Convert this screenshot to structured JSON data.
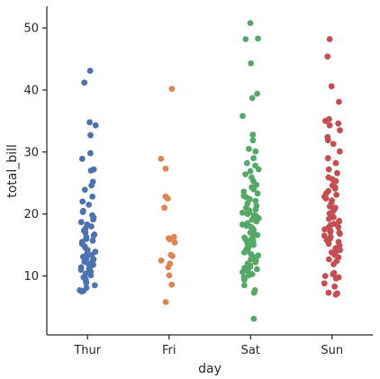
{
  "chart_data": {
    "type": "scatter",
    "subtype": "strip",
    "title": "",
    "xlabel": "day",
    "ylabel": "total_bill",
    "categories": [
      "Thur",
      "Fri",
      "Sat",
      "Sun"
    ],
    "ylim": [
      0.5,
      53.5
    ],
    "yticks": [
      10,
      20,
      30,
      40,
      50
    ],
    "grid": false,
    "legend": "none",
    "series": [
      {
        "category": "Thur",
        "color": "#4c72b0",
        "values": [
          43.1,
          41.2,
          34.8,
          34.3,
          32.7,
          29.8,
          28.9,
          27.2,
          27.0,
          25.2,
          24.6,
          23.9,
          22.8,
          22.0,
          21.5,
          20.5,
          20.3,
          19.8,
          19.4,
          19.1,
          18.7,
          18.3,
          18.0,
          17.6,
          17.3,
          17.0,
          16.7,
          16.5,
          16.3,
          16.0,
          15.7,
          15.5,
          15.2,
          14.8,
          14.5,
          14.2,
          13.9,
          13.6,
          13.4,
          13.1,
          12.9,
          12.7,
          12.5,
          12.3,
          12.0,
          11.8,
          11.6,
          11.4,
          11.2,
          11.0,
          10.7,
          10.4,
          10.1,
          9.8,
          9.5,
          9.2,
          8.9,
          8.5,
          8.1,
          7.7,
          7.6,
          7.5
        ]
      },
      {
        "category": "Fri",
        "color": "#dd8452",
        "values": [
          40.2,
          28.9,
          27.3,
          22.8,
          22.5,
          21.0,
          16.3,
          16.1,
          15.9,
          15.4,
          13.4,
          13.2,
          12.5,
          12.0,
          11.4,
          10.1,
          8.6,
          5.8
        ]
      },
      {
        "category": "Sat",
        "color": "#55a868",
        "values": [
          50.8,
          48.3,
          48.2,
          44.3,
          39.4,
          38.7,
          35.8,
          32.8,
          31.9,
          30.5,
          30.1,
          29.0,
          28.2,
          27.8,
          27.2,
          26.9,
          26.4,
          25.9,
          25.3,
          24.7,
          24.3,
          24.0,
          23.6,
          23.3,
          22.9,
          22.7,
          22.4,
          22.1,
          21.7,
          21.3,
          21.0,
          20.7,
          20.6,
          20.4,
          20.2,
          20.0,
          19.8,
          19.7,
          19.5,
          19.3,
          19.1,
          18.8,
          18.5,
          18.3,
          18.1,
          17.9,
          17.6,
          17.4,
          17.2,
          17.0,
          16.8,
          16.6,
          16.4,
          16.2,
          16.0,
          15.8,
          15.6,
          15.4,
          15.2,
          15.0,
          14.8,
          14.6,
          14.3,
          14.0,
          13.8,
          13.5,
          13.3,
          13.0,
          12.7,
          12.5,
          12.2,
          12.0,
          11.7,
          11.5,
          11.3,
          11.1,
          10.8,
          10.6,
          10.3,
          10.1,
          9.8,
          9.6,
          9.4,
          8.5,
          7.7,
          7.3,
          3.1
        ]
      },
      {
        "category": "Sun",
        "color": "#c44e52",
        "values": [
          48.2,
          45.4,
          40.6,
          38.1,
          35.3,
          35.0,
          34.6,
          34.3,
          33.5,
          32.4,
          31.9,
          31.3,
          30.1,
          29.0,
          28.2,
          27.2,
          26.6,
          25.9,
          25.6,
          25.3,
          24.6,
          24.3,
          24.1,
          23.7,
          23.3,
          23.1,
          22.8,
          22.5,
          22.2,
          21.8,
          21.2,
          21.0,
          20.7,
          20.5,
          20.1,
          20.0,
          19.8,
          19.5,
          19.2,
          18.9,
          18.8,
          18.4,
          18.2,
          17.9,
          17.8,
          17.5,
          17.3,
          17.1,
          17.0,
          16.8,
          16.5,
          16.3,
          16.0,
          15.8,
          15.5,
          15.2,
          14.9,
          14.5,
          14.2,
          14.0,
          13.8,
          13.4,
          13.0,
          12.7,
          12.4,
          11.9,
          10.5,
          10.3,
          10.0,
          9.8,
          9.6,
          8.8,
          8.3,
          7.3,
          7.2,
          7.0
        ]
      }
    ]
  }
}
